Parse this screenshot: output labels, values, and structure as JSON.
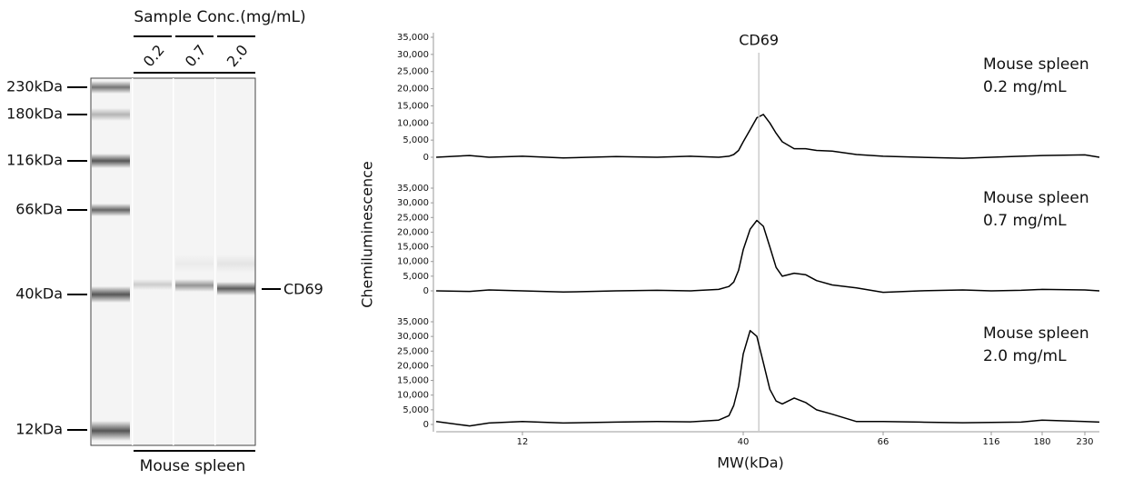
{
  "gel": {
    "title": "Sample Conc.(mg/mL)",
    "lanes": [
      "0.2",
      "0.7",
      "2.0"
    ],
    "markers": [
      "230kDa",
      "180kDa",
      "116kDa",
      "66kDa",
      "40kDa",
      "12kDa"
    ],
    "band_label": "CD69",
    "sample": "Mouse spleen"
  },
  "chart_data": [
    {
      "type": "line",
      "annotation": [
        "Mouse spleen",
        "0.2 mg/mL"
      ],
      "marker_label": "CD69",
      "marker_x": 42.3,
      "x": [
        7.5,
        9,
        10,
        12,
        15,
        20,
        25,
        30,
        35,
        37,
        38,
        39,
        40,
        41,
        42,
        43,
        44,
        45,
        46,
        48,
        50,
        52,
        55,
        60,
        66,
        80,
        100,
        116,
        150,
        180,
        230,
        250
      ],
      "series": [
        {
          "name": "Mouse spleen 0.2 mg/mL",
          "color": "#000000",
          "values": [
            0,
            500,
            0,
            300,
            -200,
            200,
            0,
            300,
            0,
            300,
            800,
            2000,
            4500,
            8000,
            11500,
            12500,
            10000,
            7000,
            4500,
            2500,
            2500,
            2000,
            1800,
            800,
            300,
            0,
            -300,
            0,
            300,
            500,
            700,
            0
          ]
        }
      ],
      "ylim": [
        0,
        35000
      ],
      "yticks": [
        0,
        {
          "value": 5000,
          "label": "5,000"
        },
        {
          "value": 10000,
          "label": "10,000"
        },
        {
          "value": 15000,
          "label": "15,000"
        },
        {
          "value": 20000,
          "label": "20,000"
        },
        {
          "value": 25000,
          "label": "25,000"
        },
        {
          "value": 30000,
          "label": "30,000"
        },
        {
          "value": 35000,
          "label": "35,000"
        }
      ]
    },
    {
      "type": "line",
      "annotation": [
        "Mouse spleen",
        "0.7 mg/mL"
      ],
      "ylabel": "Chemiluminescence",
      "x": [
        7.5,
        9,
        10,
        12,
        15,
        20,
        25,
        30,
        35,
        37,
        38,
        39,
        40,
        41,
        42,
        43,
        44,
        45,
        46,
        48,
        50,
        52,
        55,
        60,
        66,
        80,
        100,
        116,
        150,
        180,
        230,
        250
      ],
      "series": [
        {
          "name": "Mouse spleen 0.7 mg/mL",
          "color": "#000000",
          "values": [
            0,
            -200,
            300,
            0,
            -400,
            0,
            200,
            0,
            500,
            1500,
            3000,
            7000,
            14000,
            21000,
            24000,
            22000,
            15000,
            8000,
            5000,
            6000,
            5500,
            3500,
            2000,
            1000,
            -500,
            0,
            300,
            0,
            200,
            500,
            300,
            0
          ]
        }
      ],
      "ylim": [
        0,
        35000
      ],
      "yticks": [
        0,
        {
          "value": 5000,
          "label": "5,000"
        },
        {
          "value": 10000,
          "label": "10,000"
        },
        {
          "value": 15000,
          "label": "15,000"
        },
        {
          "value": 20000,
          "label": "20,000"
        },
        {
          "value": 25000,
          "label": "25,000"
        },
        {
          "value": 30000,
          "label": "30,000"
        },
        {
          "value": 35000,
          "label": "35,000"
        }
      ]
    },
    {
      "type": "line",
      "annotation": [
        "Mouse spleen",
        "2.0 mg/mL"
      ],
      "xlabel": "MW(kDa)",
      "x": [
        7.5,
        9,
        10,
        12,
        15,
        20,
        25,
        30,
        35,
        37,
        38,
        39,
        40,
        41,
        42,
        43,
        44,
        45,
        46,
        48,
        50,
        52,
        55,
        60,
        66,
        80,
        100,
        116,
        150,
        180,
        230,
        250
      ],
      "series": [
        {
          "name": "Mouse spleen 2.0 mg/mL",
          "color": "#000000",
          "values": [
            1000,
            -500,
            500,
            1000,
            500,
            800,
            1000,
            900,
            1500,
            3000,
            6500,
            13000,
            24000,
            32000,
            30000,
            21000,
            12000,
            8000,
            7000,
            9000,
            7500,
            5000,
            3500,
            1000,
            1000,
            800,
            600,
            700,
            800,
            1500,
            1000,
            800
          ]
        }
      ],
      "ylim": [
        0,
        35000
      ],
      "yticks": [
        0,
        {
          "value": 5000,
          "label": "5,000"
        },
        {
          "value": 10000,
          "label": "10,000"
        },
        {
          "value": 15000,
          "label": "15,000"
        },
        {
          "value": 20000,
          "label": "20,000"
        },
        {
          "value": 25000,
          "label": "25,000"
        },
        {
          "value": 30000,
          "label": "30,000"
        },
        {
          "value": 35000,
          "label": "35,000"
        }
      ],
      "xlim": [
        7.5,
        250
      ],
      "xticks": [
        12,
        40,
        66,
        116,
        180,
        230
      ]
    }
  ]
}
